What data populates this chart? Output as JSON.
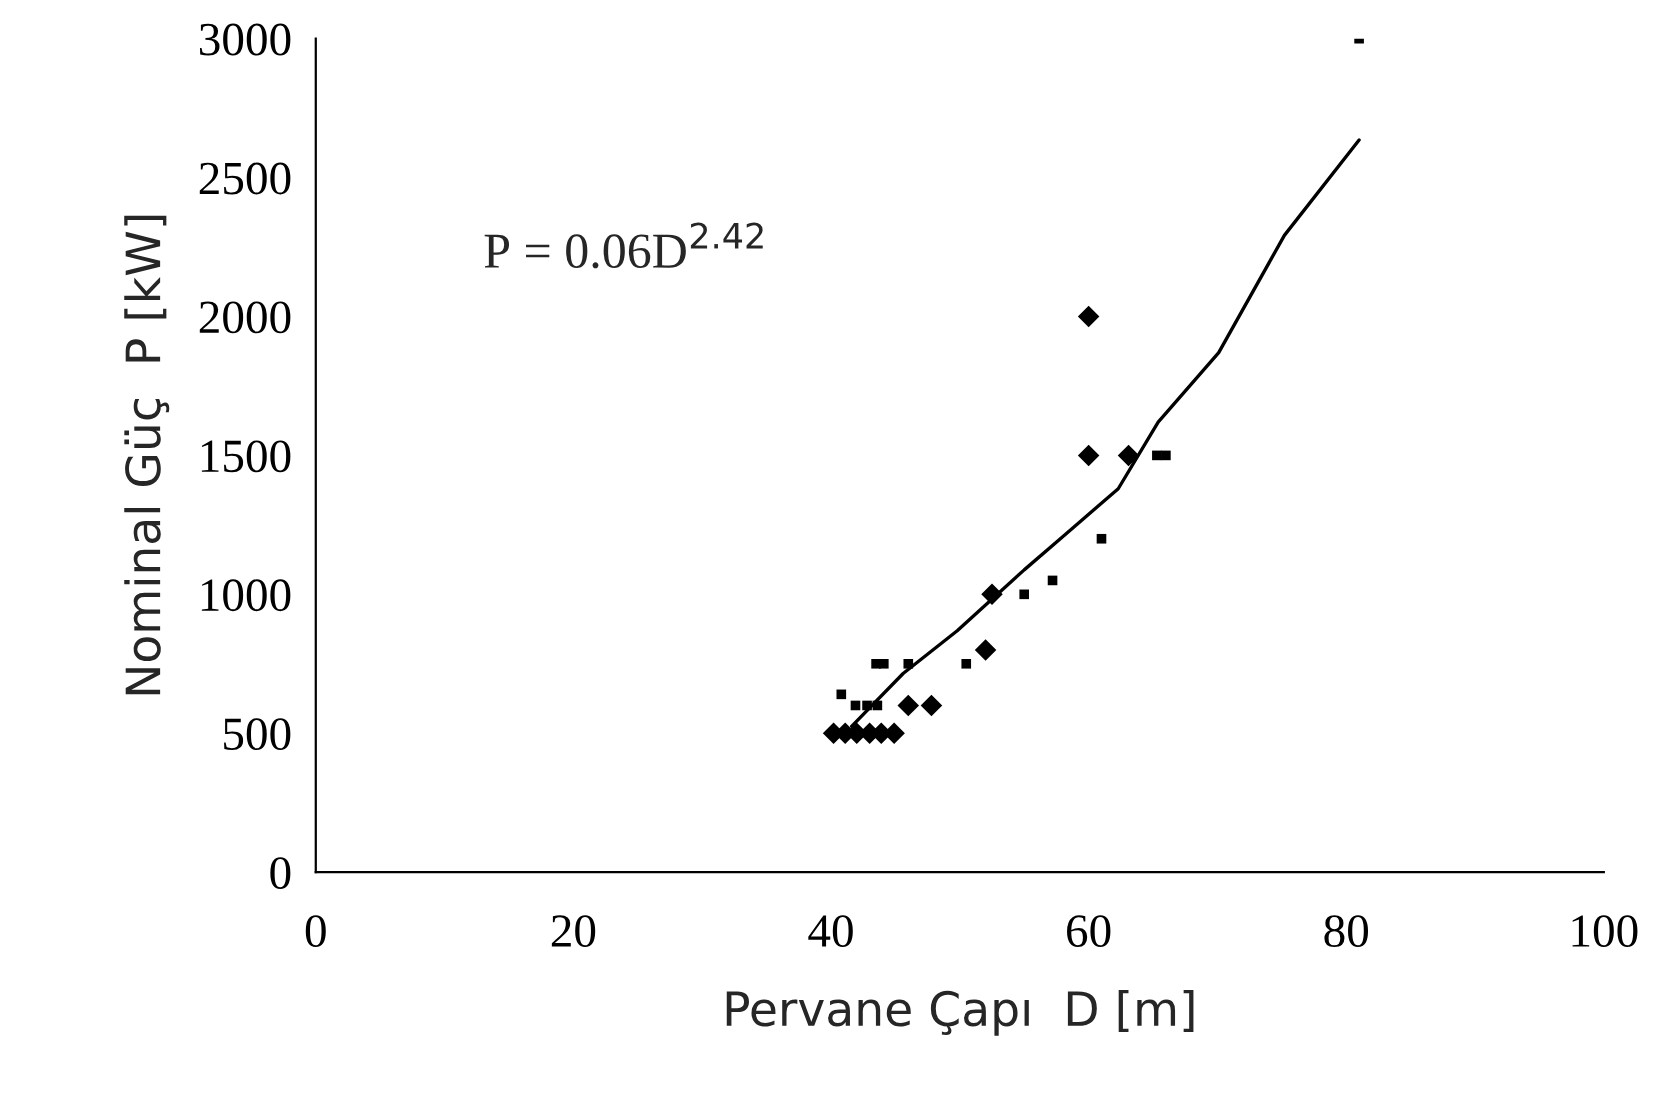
{
  "chart_data": {
    "type": "scatter",
    "xlabel": "Pervane Çapı  D [m]",
    "ylabel": "Nominal Güç  P [kW]",
    "annotations": [
      "P = 0.06D$^{2.42}$"
    ],
    "xlim": [
      0,
      100
    ],
    "xticks": [
      0,
      20,
      40,
      60,
      80,
      100
    ],
    "ylim": [
      0,
      3000
    ],
    "yticks": [
      0,
      500,
      1000,
      1500,
      2000,
      2500,
      3000
    ],
    "grid": false,
    "legend": false,
    "series": [
      {
        "color": "#000000",
        "marker": "diamond",
        "x": [
          40.2,
          41.1,
          42,
          43,
          43.9,
          44.9,
          46,
          47.8,
          52,
          52.5,
          60,
          60,
          63.1
        ],
        "values": [
          500,
          500,
          500,
          500,
          500,
          500,
          600,
          600,
          800,
          1000,
          1500,
          2000,
          1500
        ]
      },
      {
        "color": "#000000",
        "marker": "square",
        "x": [
          40.8,
          41.9,
          42.8,
          43.6,
          43.5,
          44.1,
          46,
          50.5,
          55,
          57.2,
          61,
          65.3,
          66,
          81
        ],
        "values": [
          640,
          600,
          600,
          600,
          750,
          750,
          750,
          750,
          1000,
          1050,
          1200,
          1500,
          1500,
          3000
        ]
      },
      {
        "type": "line",
        "color": "#000000",
        "marker": "none",
        "x": [
          41.6,
          45.6,
          49.8,
          55,
          58.1,
          62.3,
          65.4,
          70.1,
          75.2,
          81
        ],
        "values": [
          525,
          715,
          869,
          1088,
          1212,
          1380,
          1620,
          1870,
          2292,
          2635
        ]
      }
    ]
  }
}
